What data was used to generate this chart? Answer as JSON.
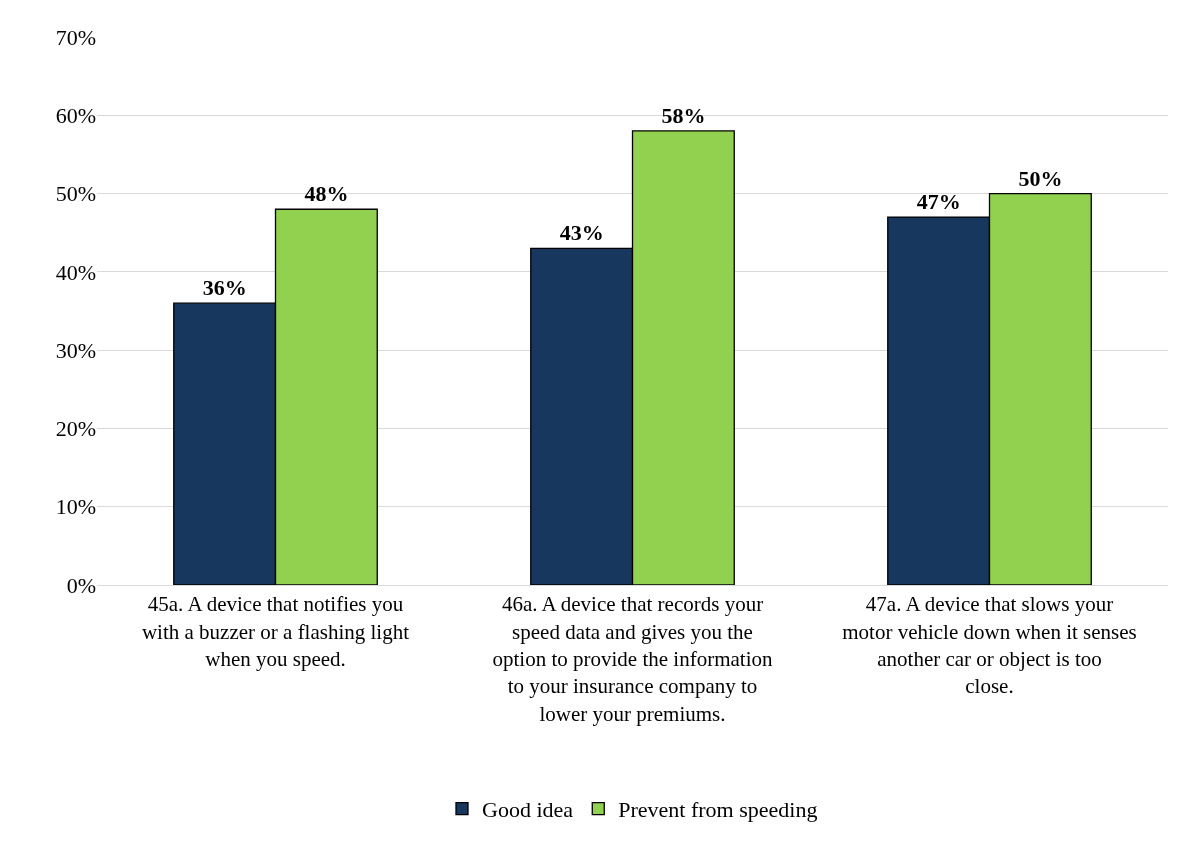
{
  "chart_data": {
    "type": "bar",
    "categories": [
      "45a. A device that notifies you with a buzzer or a flashing light when you speed.",
      "46a. A device that records your speed data and gives you the option to provide the information to your insurance company to lower your premiums.",
      "47a. A device that slows your motor vehicle down when it senses another car or object is too close."
    ],
    "series": [
      {
        "name": "Good idea",
        "color": "#17375e",
        "values": [
          36,
          43,
          47
        ],
        "value_labels": [
          "36%",
          "43%",
          "47%"
        ]
      },
      {
        "name": "Prevent from speeding",
        "color": "#92d050",
        "values": [
          48,
          58,
          50
        ],
        "value_labels": [
          "48%",
          "58%",
          "50%"
        ]
      }
    ],
    "ylim": [
      0,
      70
    ],
    "yticks": [
      {
        "value": 0,
        "label": "0%"
      },
      {
        "value": 10,
        "label": "10%"
      },
      {
        "value": 20,
        "label": "20%"
      },
      {
        "value": 30,
        "label": "30%"
      },
      {
        "value": 40,
        "label": "40%"
      },
      {
        "value": 50,
        "label": "50%"
      },
      {
        "value": 60,
        "label": "60%"
      },
      {
        "value": 70,
        "label": "70%"
      }
    ],
    "grid": "y",
    "legend": "bottom"
  }
}
